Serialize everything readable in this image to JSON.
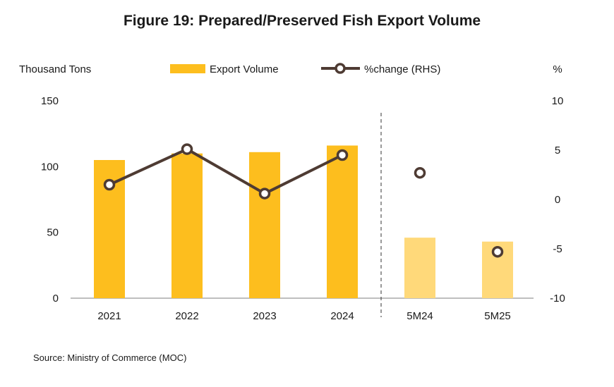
{
  "chart_data": {
    "type": "bar",
    "title": "Figure 19: Prepared/Preserved Fish Export Volume",
    "ylabel_left": "Thousand Tons",
    "ylabel_right": "%",
    "categories": [
      "2021",
      "2022",
      "2023",
      "2024",
      "5M24",
      "5M25"
    ],
    "left_axis": {
      "range": [
        0,
        150
      ],
      "ticks": [
        "0",
        "50",
        "100",
        "150"
      ],
      "tick_values": [
        0,
        50,
        100,
        150
      ]
    },
    "right_axis": {
      "range": [
        -10,
        10
      ],
      "ticks": [
        "-10",
        "-5",
        "0",
        "5",
        "10"
      ],
      "tick_values": [
        -10,
        -5,
        0,
        5,
        10
      ]
    },
    "series": [
      {
        "name": "Export Volume",
        "type": "bar",
        "axis": "left",
        "values": [
          105,
          110,
          111,
          116,
          46,
          43
        ],
        "colors": [
          "#FDBE1E",
          "#FDBE1E",
          "#FDBE1E",
          "#FDBE1E",
          "#FFD97A",
          "#FFD97A"
        ]
      },
      {
        "name": "%change (RHS)",
        "type": "line",
        "axis": "right",
        "values": [
          1.5,
          5.1,
          0.6,
          4.5,
          2.7,
          -5.3
        ],
        "connected_through_index": 3,
        "color": "#4E3B33"
      }
    ],
    "divider_after": "2024",
    "legend": [
      "Export Volume",
      "%change (RHS)"
    ],
    "legend_position": "top-center"
  },
  "source": "Source: Ministry of Commerce (MOC)"
}
